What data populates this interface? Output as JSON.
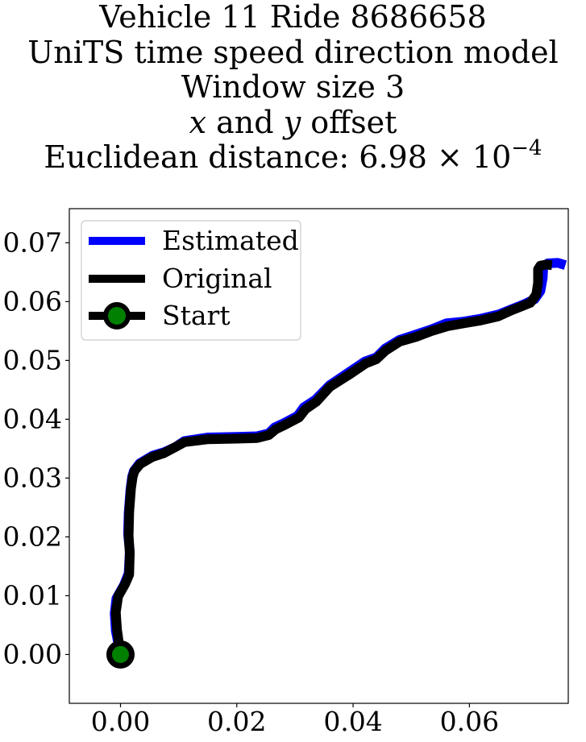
{
  "chart_data": {
    "type": "line",
    "title_lines": [
      "Vehicle 11 Ride 8686658",
      "UniTS time speed direction model",
      "Window size 3"
    ],
    "title_offset_line": {
      "x": "x",
      "and": " and ",
      "y": "y",
      "rest": " offset"
    },
    "title_distance": {
      "prefix": "Euclidean distance: ",
      "mantissa": "6.98",
      "times": " × 10",
      "exponent": "−4"
    },
    "xlabel": "",
    "ylabel": "",
    "xlim": [
      -0.0088,
      0.077
    ],
    "ylim": [
      -0.0083,
      0.0758
    ],
    "x_ticks": [
      0.0,
      0.02,
      0.04,
      0.06
    ],
    "x_tick_labels": [
      "0.00",
      "0.02",
      "0.04",
      "0.06"
    ],
    "y_ticks": [
      0.0,
      0.01,
      0.02,
      0.03,
      0.04,
      0.05,
      0.06,
      0.07
    ],
    "y_tick_labels": [
      "0.00",
      "0.01",
      "0.02",
      "0.03",
      "0.04",
      "0.05",
      "0.06",
      "0.07"
    ],
    "grid": false,
    "legend_position": "upper left",
    "series": [
      {
        "name": "Estimated",
        "color": "#0000ff",
        "x": [
          0.0,
          -0.0008,
          -0.001,
          -0.0007,
          0.0006,
          0.0014,
          0.0016,
          0.0013,
          0.0014,
          0.0017,
          0.002,
          0.0023,
          0.0033,
          0.0055,
          0.0075,
          0.0095,
          0.011,
          0.015,
          0.02,
          0.0235,
          0.0255,
          0.0265,
          0.028,
          0.0305,
          0.0315,
          0.0335,
          0.036,
          0.039,
          0.042,
          0.044,
          0.0455,
          0.048,
          0.0505,
          0.0535,
          0.056,
          0.059,
          0.062,
          0.065,
          0.0675,
          0.0695,
          0.0712,
          0.0722,
          0.0726,
          0.0727,
          0.0735,
          0.0752,
          0.0765
        ],
        "y": [
          0.0,
          0.004,
          0.007,
          0.0095,
          0.0118,
          0.0138,
          0.0175,
          0.0205,
          0.024,
          0.028,
          0.0302,
          0.0312,
          0.0325,
          0.0338,
          0.0344,
          0.0353,
          0.0363,
          0.0369,
          0.037,
          0.0371,
          0.0376,
          0.0386,
          0.0393,
          0.0406,
          0.042,
          0.0433,
          0.0458,
          0.0478,
          0.0498,
          0.0505,
          0.052,
          0.0535,
          0.0543,
          0.0553,
          0.0563,
          0.0566,
          0.0571,
          0.0578,
          0.0588,
          0.0596,
          0.0604,
          0.0618,
          0.064,
          0.066,
          0.0665,
          0.0666,
          0.0662
        ]
      },
      {
        "name": "Original",
        "color": "#000000",
        "x": [
          0.0,
          -0.0006,
          -0.0008,
          -0.0004,
          0.0008,
          0.0015,
          0.0016,
          0.0014,
          0.0015,
          0.0018,
          0.0021,
          0.0024,
          0.0034,
          0.0055,
          0.0074,
          0.0093,
          0.011,
          0.015,
          0.02,
          0.0235,
          0.0255,
          0.0267,
          0.0282,
          0.0307,
          0.0318,
          0.0337,
          0.036,
          0.0392,
          0.0422,
          0.044,
          0.0456,
          0.048,
          0.0508,
          0.0535,
          0.0562,
          0.059,
          0.062,
          0.065,
          0.0672,
          0.069,
          0.0705,
          0.0715,
          0.0718,
          0.0718,
          0.0722,
          0.0732,
          0.0742
        ],
        "y": [
          0.0,
          0.0042,
          0.0072,
          0.0099,
          0.012,
          0.0136,
          0.0172,
          0.0202,
          0.0242,
          0.0282,
          0.0302,
          0.0312,
          0.0324,
          0.0336,
          0.0342,
          0.0352,
          0.0361,
          0.0366,
          0.0367,
          0.0368,
          0.0373,
          0.0383,
          0.039,
          0.0403,
          0.0417,
          0.043,
          0.0455,
          0.0475,
          0.0495,
          0.0502,
          0.0517,
          0.0532,
          0.054,
          0.055,
          0.0558,
          0.0563,
          0.0568,
          0.0575,
          0.0585,
          0.0592,
          0.0598,
          0.0612,
          0.0632,
          0.0655,
          0.0661,
          0.0663,
          0.0662
        ]
      }
    ],
    "start_marker": {
      "name": "Start",
      "x": 0.0,
      "y": 0.0,
      "edge_color": "#000000",
      "face_color": "#008000"
    }
  }
}
